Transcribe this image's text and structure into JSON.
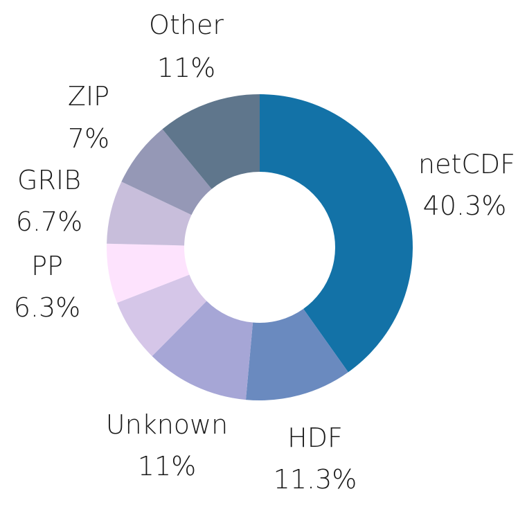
{
  "chart_data": {
    "type": "pie",
    "donut": true,
    "legend": "none",
    "slices": [
      {
        "label": "netCDF",
        "value": 40.3,
        "value_label": "40.3%",
        "color": "#1372a7"
      },
      {
        "label": "HDF",
        "value": 11.3,
        "value_label": "11.3%",
        "color": "#6a8abf"
      },
      {
        "label": "Unknown",
        "value": 11,
        "value_label": "11%",
        "color": "#a6a6d6"
      },
      {
        "label": "",
        "value": 6.7,
        "value_label": "",
        "color": "#d5c6e8"
      },
      {
        "label": "PP",
        "value": 6.3,
        "value_label": "6.3%",
        "color": "#fde3fd"
      },
      {
        "label": "GRIB",
        "value": 6.7,
        "value_label": "6.7%",
        "color": "#c8bedb"
      },
      {
        "label": "ZIP",
        "value": 7,
        "value_label": "7%",
        "color": "#9598b6"
      },
      {
        "label": "Other",
        "value": 11,
        "value_label": "11%",
        "color": "#5f768c"
      }
    ]
  }
}
